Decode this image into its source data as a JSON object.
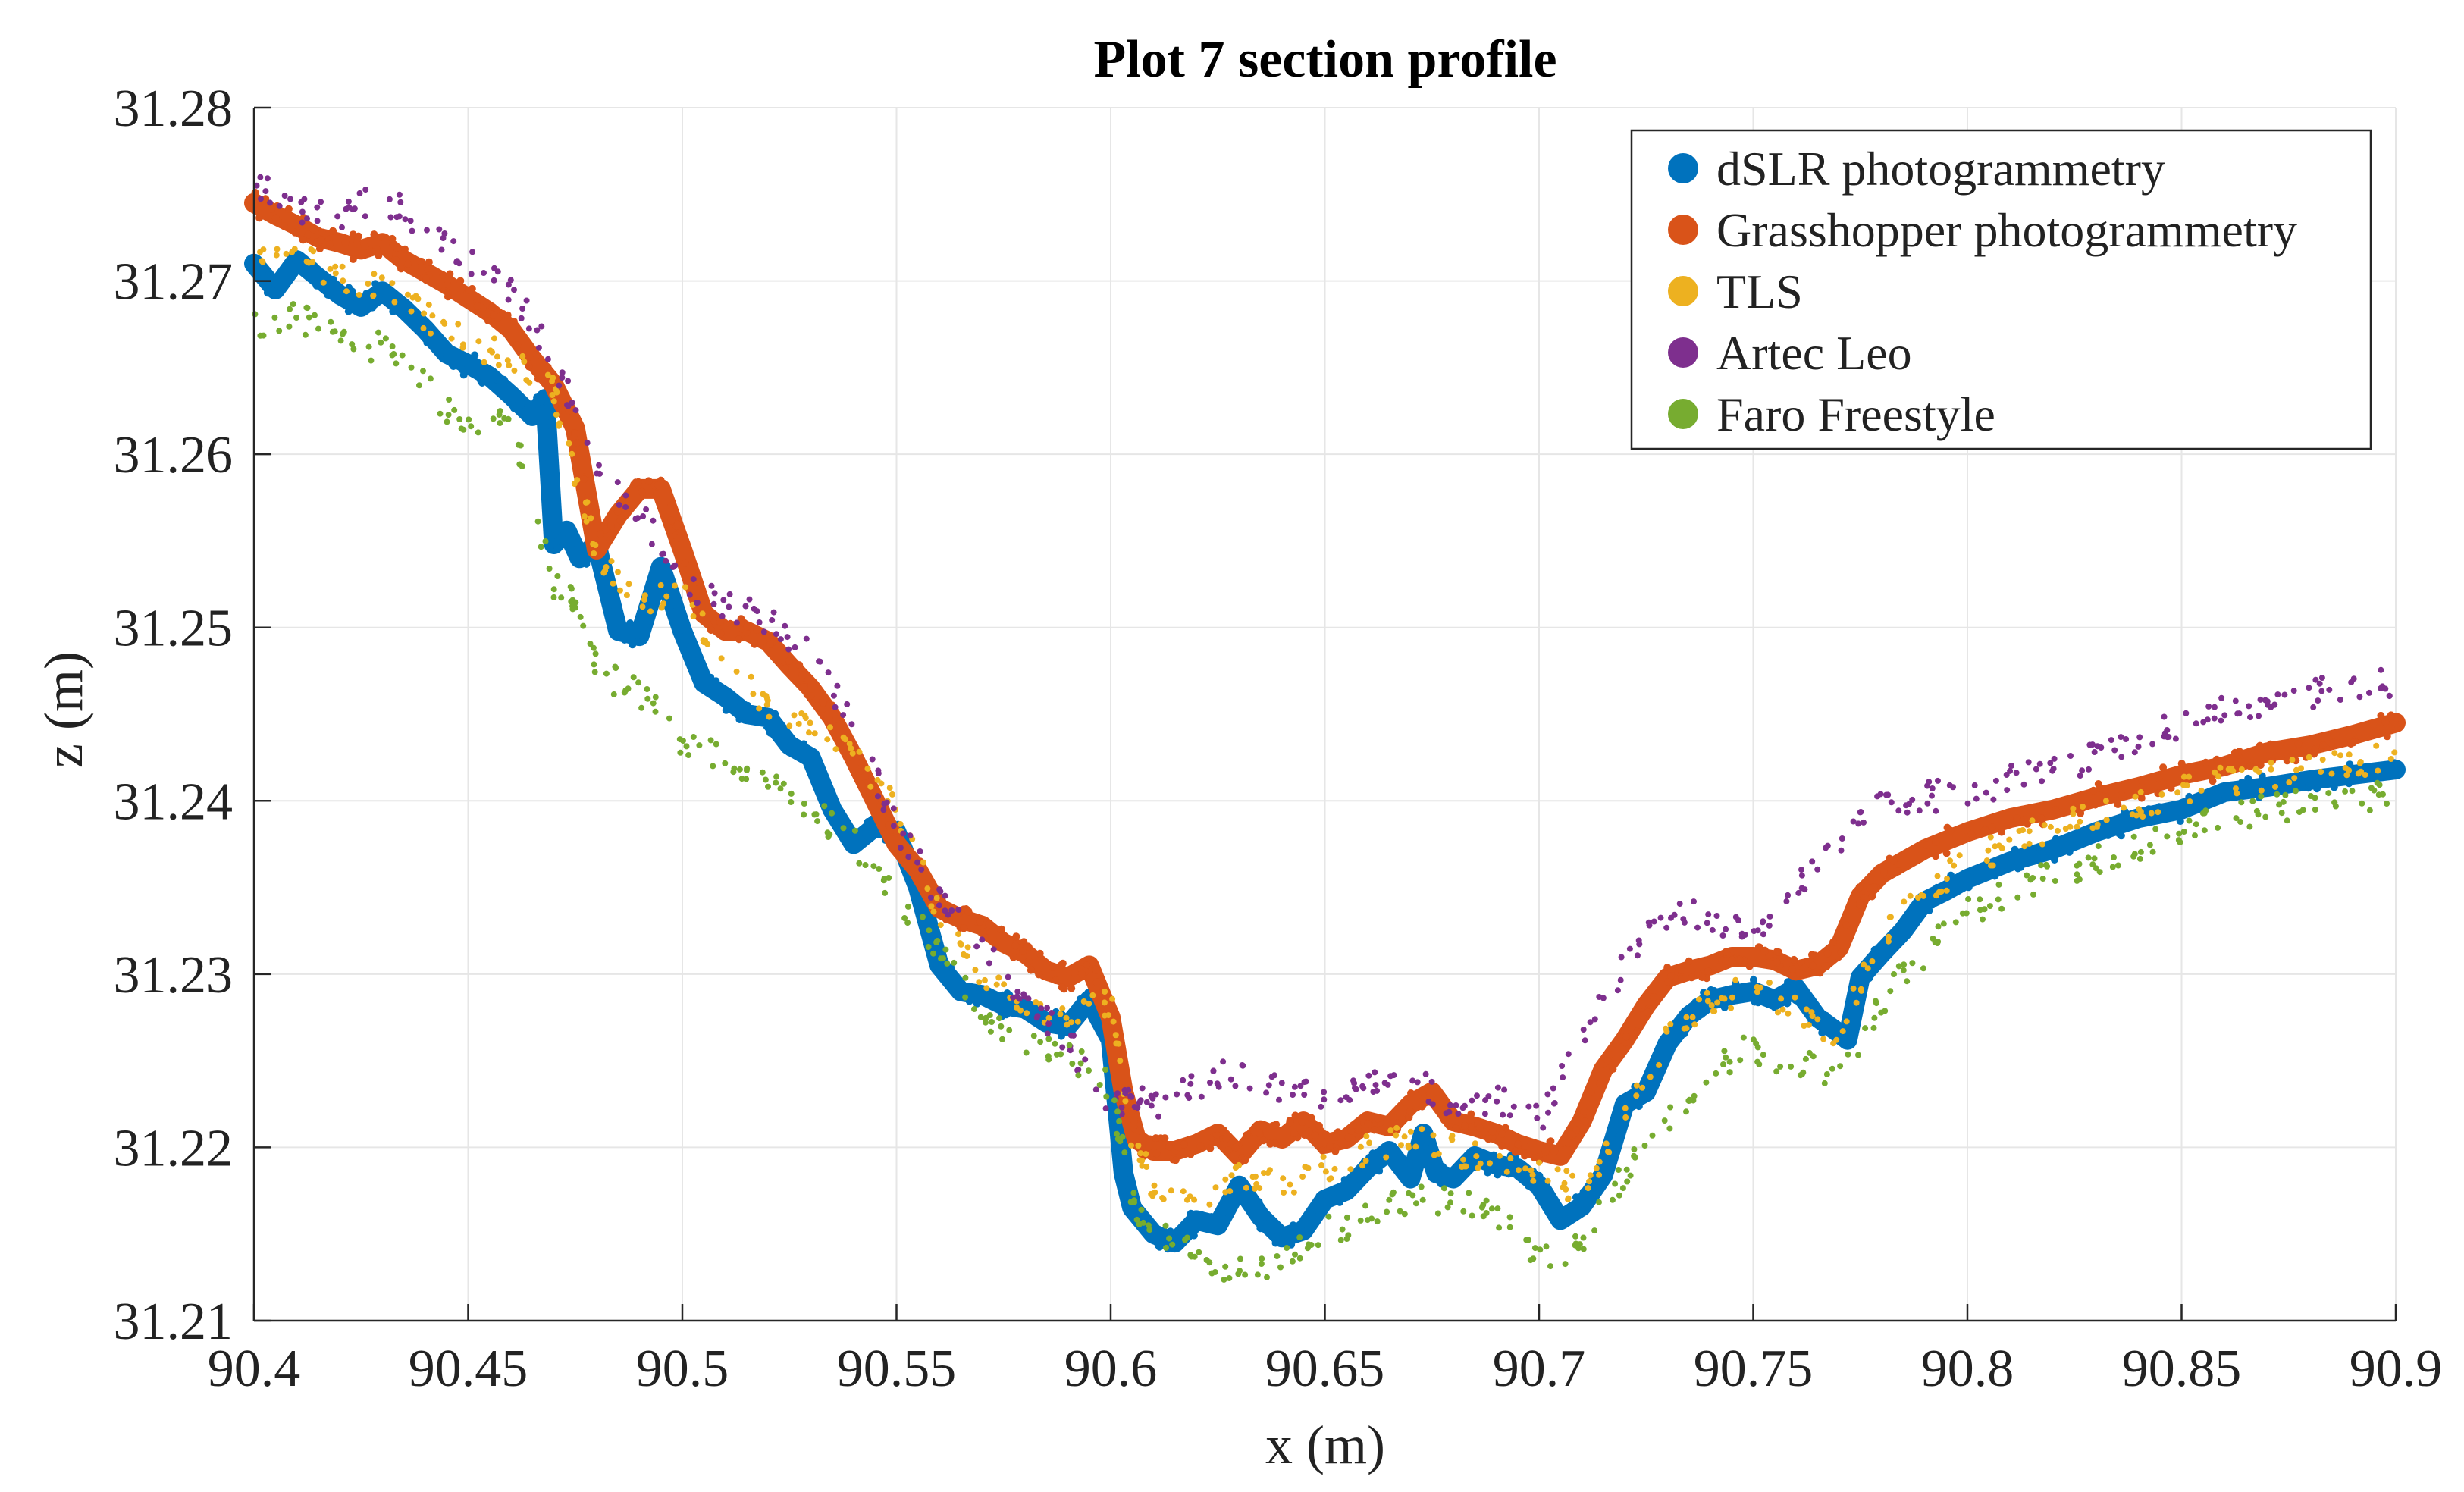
{
  "chart_data": {
    "type": "scatter",
    "title": "Plot 7 section profile",
    "xlabel": "x (m)",
    "ylabel": "z (m)",
    "xlim": [
      90.4,
      90.9
    ],
    "ylim": [
      31.21,
      31.28
    ],
    "xticks": [
      "90.4",
      "90.45",
      "90.5",
      "90.55",
      "90.6",
      "90.65",
      "90.7",
      "90.75",
      "90.8",
      "90.85",
      "90.9"
    ],
    "yticks": [
      "31.21",
      "31.22",
      "31.23",
      "31.24",
      "31.25",
      "31.26",
      "31.27",
      "31.28"
    ],
    "grid": true,
    "legend_position": "top-right",
    "series": [
      {
        "name": "dSLR photogrammetry",
        "color": "#0072BD",
        "style": "dense",
        "x": [
          90.4,
          90.405,
          90.41,
          90.415,
          90.42,
          90.425,
          90.43,
          90.435,
          90.44,
          90.445,
          90.45,
          90.455,
          90.46,
          90.465,
          90.468,
          90.47,
          90.473,
          90.476,
          90.48,
          90.485,
          90.49,
          90.495,
          90.5,
          90.505,
          90.51,
          90.515,
          90.52,
          90.525,
          90.53,
          90.535,
          90.54,
          90.545,
          90.55,
          90.555,
          90.56,
          90.565,
          90.57,
          90.575,
          90.58,
          90.585,
          90.59,
          90.595,
          90.6,
          90.603,
          90.605,
          90.61,
          90.615,
          90.62,
          90.625,
          90.63,
          90.635,
          90.64,
          90.645,
          90.65,
          90.655,
          90.66,
          90.665,
          90.67,
          90.673,
          90.676,
          90.68,
          90.685,
          90.69,
          90.695,
          90.7,
          90.705,
          90.71,
          90.715,
          90.72,
          90.725,
          90.73,
          90.735,
          90.74,
          90.745,
          90.75,
          90.755,
          90.76,
          90.765,
          90.77,
          90.772,
          90.775,
          90.78,
          90.785,
          90.79,
          90.795,
          90.8,
          90.81,
          90.82,
          90.83,
          90.84,
          90.85,
          90.86,
          90.87,
          90.88,
          90.89,
          90.9
        ],
        "y": [
          31.271,
          31.2695,
          31.2712,
          31.2702,
          31.2692,
          31.2685,
          31.2694,
          31.2684,
          31.2672,
          31.2658,
          31.2652,
          31.2645,
          31.2634,
          31.2622,
          31.2632,
          31.2548,
          31.2556,
          31.254,
          31.2548,
          31.2498,
          31.2495,
          31.2535,
          31.2498,
          31.2468,
          31.246,
          31.245,
          31.2448,
          31.2432,
          31.2425,
          31.2395,
          31.2375,
          31.2385,
          31.2382,
          31.235,
          31.2305,
          31.229,
          31.2288,
          31.2282,
          31.228,
          31.2272,
          31.227,
          31.2285,
          31.2262,
          31.2185,
          31.2165,
          31.215,
          31.2145,
          31.2158,
          31.2155,
          31.2178,
          31.216,
          31.2148,
          31.2152,
          31.217,
          31.2175,
          31.2188,
          31.2198,
          31.2182,
          31.2208,
          31.2185,
          31.2182,
          31.2195,
          31.219,
          31.2188,
          31.2178,
          31.2158,
          31.2166,
          31.2184,
          31.2225,
          31.2232,
          31.226,
          31.2276,
          31.2285,
          31.2288,
          31.229,
          31.2285,
          31.2292,
          31.2275,
          31.2266,
          31.2262,
          31.2298,
          31.2312,
          31.2325,
          31.2342,
          31.2348,
          31.2355,
          31.2365,
          31.2372,
          31.2382,
          31.239,
          31.2395,
          31.2405,
          31.2408,
          31.2412,
          31.2415,
          31.2418
        ]
      },
      {
        "name": "Grasshopper photogrammetry",
        "color": "#D95319",
        "style": "dense",
        "x": [
          90.4,
          90.405,
          90.41,
          90.415,
          90.42,
          90.425,
          90.43,
          90.435,
          90.44,
          90.445,
          90.45,
          90.455,
          90.46,
          90.465,
          90.47,
          90.475,
          90.48,
          90.485,
          90.49,
          90.495,
          90.5,
          90.505,
          90.51,
          90.515,
          90.52,
          90.525,
          90.53,
          90.535,
          90.54,
          90.545,
          90.55,
          90.555,
          90.56,
          90.565,
          90.57,
          90.575,
          90.58,
          90.585,
          90.59,
          90.595,
          90.6,
          90.603,
          90.606,
          90.61,
          90.615,
          90.62,
          90.625,
          90.63,
          90.635,
          90.64,
          90.645,
          90.65,
          90.655,
          90.66,
          90.665,
          90.67,
          90.675,
          90.68,
          90.685,
          90.69,
          90.695,
          90.7,
          90.705,
          90.71,
          90.715,
          90.72,
          90.725,
          90.73,
          90.735,
          90.74,
          90.745,
          90.75,
          90.755,
          90.76,
          90.765,
          90.77,
          90.775,
          90.78,
          90.79,
          90.8,
          90.81,
          90.82,
          90.83,
          90.84,
          90.85,
          90.86,
          90.87,
          90.88,
          90.89,
          90.9
        ],
        "y": [
          31.2745,
          31.2738,
          31.2732,
          31.2725,
          31.2722,
          31.2718,
          31.2722,
          31.2712,
          31.2705,
          31.2698,
          31.269,
          31.2682,
          31.2672,
          31.2655,
          31.264,
          31.2615,
          31.2545,
          31.2565,
          31.258,
          31.258,
          31.2545,
          31.2508,
          31.2498,
          31.2498,
          31.2492,
          31.2478,
          31.2465,
          31.2448,
          31.2425,
          31.24,
          31.2375,
          31.236,
          31.2338,
          31.2332,
          31.2328,
          31.2318,
          31.2312,
          31.2302,
          31.2298,
          31.2305,
          31.2275,
          31.2232,
          31.2205,
          31.2198,
          31.2198,
          31.2202,
          31.2208,
          31.2195,
          31.221,
          31.2205,
          31.2215,
          31.2202,
          31.2205,
          31.2215,
          31.2212,
          31.2225,
          31.2232,
          31.2215,
          31.2212,
          31.2208,
          31.2202,
          31.2198,
          31.2195,
          31.2215,
          31.2245,
          31.2262,
          31.2282,
          31.2298,
          31.2302,
          31.2305,
          31.231,
          31.231,
          31.2308,
          31.2302,
          31.2305,
          31.2315,
          31.2345,
          31.2358,
          31.2372,
          31.2382,
          31.239,
          31.2395,
          31.2402,
          31.2408,
          31.2415,
          31.242,
          31.2428,
          31.2432,
          31.2438,
          31.2445
        ]
      },
      {
        "name": "TLS",
        "color": "#EDB120",
        "style": "sparse",
        "x": [
          90.4,
          90.41,
          90.42,
          90.43,
          90.44,
          90.45,
          90.46,
          90.47,
          90.475,
          90.48,
          90.49,
          90.5,
          90.51,
          90.52,
          90.53,
          90.54,
          90.55,
          90.56,
          90.57,
          90.58,
          90.59,
          90.6,
          90.605,
          90.61,
          90.62,
          90.63,
          90.64,
          90.65,
          90.66,
          90.67,
          90.68,
          90.69,
          90.7,
          90.71,
          90.72,
          90.73,
          90.74,
          90.75,
          90.76,
          90.77,
          90.78,
          90.79,
          90.8,
          90.81,
          90.82,
          90.83,
          90.84,
          90.85,
          90.86,
          90.87,
          90.88,
          90.89,
          90.9
        ],
        "y": [
          31.272,
          31.2715,
          31.27,
          31.2695,
          31.268,
          31.2665,
          31.2655,
          31.2635,
          31.259,
          31.2545,
          31.2515,
          31.2525,
          31.2475,
          31.2455,
          31.2445,
          31.2425,
          31.2395,
          31.2335,
          31.2295,
          31.2285,
          31.2275,
          31.2285,
          31.2205,
          31.2178,
          31.2172,
          31.2182,
          31.2178,
          31.2188,
          31.2198,
          31.2208,
          31.2198,
          31.2195,
          31.2185,
          31.2175,
          31.2215,
          31.2262,
          31.2282,
          31.2292,
          31.2282,
          31.2265,
          31.2322,
          31.2345,
          31.2365,
          31.2375,
          31.2385,
          31.2392,
          31.2398,
          31.2405,
          31.2412,
          31.2415,
          31.242,
          31.2422,
          31.2425
        ]
      },
      {
        "name": "Artec Leo",
        "color": "#7E2F8E",
        "style": "sparse",
        "x": [
          90.4,
          90.41,
          90.42,
          90.43,
          90.44,
          90.45,
          90.46,
          90.47,
          90.48,
          90.49,
          90.5,
          90.51,
          90.52,
          90.53,
          90.54,
          90.55,
          90.56,
          90.57,
          90.58,
          90.59,
          90.6,
          90.605,
          90.61,
          90.62,
          90.63,
          90.64,
          90.65,
          90.66,
          90.67,
          90.68,
          90.69,
          90.7,
          90.71,
          90.72,
          90.73,
          90.74,
          90.75,
          90.76,
          90.77,
          90.78,
          90.79,
          90.8,
          90.81,
          90.82,
          90.83,
          90.84,
          90.85,
          90.86,
          90.87,
          90.88,
          90.89,
          90.9
        ],
        "y": [
          31.2758,
          31.2742,
          31.2738,
          31.2748,
          31.2732,
          31.2712,
          31.2695,
          31.2655,
          31.2592,
          31.2568,
          31.2525,
          31.2512,
          31.2505,
          31.2485,
          31.2445,
          31.2385,
          31.2345,
          31.2312,
          31.2288,
          31.2262,
          31.2222,
          31.2232,
          31.2222,
          31.2235,
          31.2245,
          31.2232,
          31.2228,
          31.2238,
          31.2242,
          31.2225,
          31.2228,
          31.2215,
          31.2265,
          31.2305,
          31.2335,
          31.2332,
          31.2322,
          31.2352,
          31.2375,
          31.2398,
          31.2402,
          31.2405,
          31.2412,
          31.2418,
          31.2425,
          31.2435,
          31.2445,
          31.2452,
          31.2458,
          31.2462,
          31.2465,
          31.2468
        ]
      },
      {
        "name": "Faro Freestyle",
        "color": "#77AC30",
        "style": "sparse",
        "x": [
          90.4,
          90.41,
          90.42,
          90.43,
          90.44,
          90.45,
          90.46,
          90.47,
          90.475,
          90.48,
          90.49,
          90.5,
          90.51,
          90.52,
          90.53,
          90.54,
          90.55,
          90.56,
          90.57,
          90.58,
          90.59,
          90.6,
          90.605,
          90.61,
          90.62,
          90.63,
          90.64,
          90.65,
          90.66,
          90.67,
          90.68,
          90.69,
          90.7,
          90.71,
          90.72,
          90.73,
          90.74,
          90.75,
          90.76,
          90.77,
          90.78,
          90.79,
          90.8,
          90.81,
          90.82,
          90.83,
          90.84,
          90.85,
          90.86,
          90.87,
          90.88,
          90.89,
          90.9
        ],
        "y": [
          31.2675,
          31.268,
          31.2665,
          31.2662,
          31.264,
          31.2615,
          31.262,
          31.2525,
          31.2515,
          31.2475,
          31.2462,
          31.2435,
          31.2422,
          31.2408,
          31.2395,
          31.2375,
          31.2345,
          31.2312,
          31.2275,
          31.2262,
          31.2255,
          31.2235,
          31.2168,
          31.215,
          31.2138,
          31.2128,
          31.2135,
          31.2152,
          31.2158,
          31.2172,
          31.2168,
          31.2162,
          31.2132,
          31.2145,
          31.2185,
          31.2215,
          31.2245,
          31.2258,
          31.2248,
          31.2242,
          31.2285,
          31.2312,
          31.2335,
          31.2348,
          31.2358,
          31.2365,
          31.2375,
          31.2382,
          31.239,
          31.2395,
          31.2398,
          31.2402,
          31.2405
        ]
      }
    ]
  }
}
